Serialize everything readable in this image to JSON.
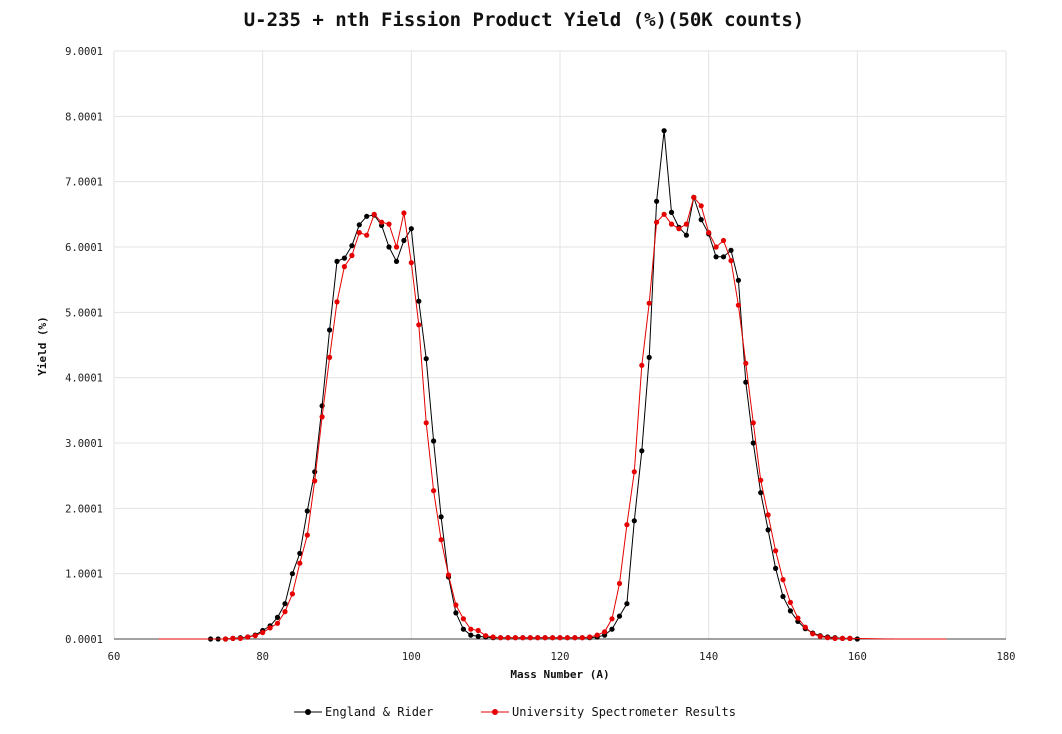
{
  "chart_data": {
    "type": "line",
    "title": "U-235 + nth Fission Product Yield (%)(50K counts)",
    "xlabel": "Mass Number (A)",
    "ylabel": "Yield (%)",
    "xlim": [
      60,
      180
    ],
    "ylim": [
      0.0001,
      9.0001
    ],
    "xticks": [
      60,
      80,
      100,
      120,
      140,
      160,
      180
    ],
    "yticks": [
      0.0001,
      1.0001,
      2.0001,
      3.0001,
      4.0001,
      5.0001,
      6.0001,
      7.0001,
      8.0001,
      9.0001
    ],
    "xtick_labels": [
      "60",
      "80",
      "100",
      "120",
      "140",
      "160",
      "180"
    ],
    "ytick_labels": [
      "0.0001",
      "1.0001",
      "2.0001",
      "3.0001",
      "4.0001",
      "5.0001",
      "6.0001",
      "7.0001",
      "8.0001",
      "9.0001"
    ],
    "grid": true,
    "legend_position": "bottom",
    "series": [
      {
        "name": "England & Rider",
        "color": "#000000",
        "x": [
          73,
          74,
          75,
          76,
          77,
          78,
          79,
          80,
          81,
          82,
          83,
          84,
          85,
          86,
          87,
          88,
          89,
          90,
          91,
          92,
          93,
          94,
          95,
          96,
          97,
          98,
          99,
          100,
          101,
          102,
          103,
          104,
          105,
          106,
          107,
          108,
          109,
          110,
          111,
          112,
          113,
          114,
          115,
          116,
          117,
          118,
          119,
          120,
          121,
          122,
          123,
          124,
          125,
          126,
          127,
          128,
          129,
          130,
          131,
          132,
          133,
          134,
          135,
          136,
          137,
          138,
          139,
          140,
          141,
          142,
          143,
          144,
          145,
          146,
          147,
          148,
          149,
          150,
          151,
          152,
          153,
          154,
          155,
          156,
          157,
          158,
          159,
          160
        ],
        "y": [
          0.0001,
          0.0001,
          0.0001,
          0.01,
          0.02,
          0.03,
          0.06,
          0.13,
          0.2,
          0.33,
          0.54,
          1.0,
          1.31,
          1.96,
          2.56,
          3.57,
          4.73,
          5.78,
          5.83,
          6.02,
          6.34,
          6.47,
          6.49,
          6.33,
          6.0,
          5.78,
          6.1,
          6.28,
          5.17,
          4.29,
          3.03,
          1.87,
          0.95,
          0.4,
          0.15,
          0.06,
          0.04,
          0.03,
          0.02,
          0.02,
          0.02,
          0.02,
          0.02,
          0.02,
          0.02,
          0.02,
          0.02,
          0.02,
          0.02,
          0.02,
          0.02,
          0.02,
          0.03,
          0.06,
          0.15,
          0.35,
          0.54,
          1.81,
          2.88,
          4.31,
          6.7,
          7.78,
          6.53,
          6.3,
          6.18,
          6.76,
          6.42,
          6.2,
          5.85,
          5.85,
          5.95,
          5.49,
          3.93,
          3.0,
          2.24,
          1.67,
          1.08,
          0.65,
          0.43,
          0.27,
          0.16,
          0.09,
          0.05,
          0.03,
          0.02,
          0.01,
          0.01,
          0.0001
        ]
      },
      {
        "name": "University Spectrometer Results",
        "color": "#e60000",
        "x": [
          66,
          70,
          75,
          76,
          77,
          78,
          79,
          80,
          81,
          82,
          83,
          84,
          85,
          86,
          87,
          88,
          89,
          90,
          91,
          92,
          93,
          94,
          95,
          96,
          97,
          98,
          99,
          100,
          101,
          102,
          103,
          104,
          105,
          106,
          107,
          108,
          109,
          110,
          111,
          112,
          113,
          114,
          115,
          116,
          117,
          118,
          119,
          120,
          121,
          122,
          123,
          124,
          125,
          126,
          127,
          128,
          129,
          130,
          131,
          132,
          133,
          134,
          135,
          136,
          137,
          138,
          139,
          140,
          141,
          142,
          143,
          144,
          145,
          146,
          147,
          148,
          149,
          150,
          151,
          152,
          153,
          154,
          155,
          156,
          157,
          158,
          159,
          165,
          172
        ],
        "y": [
          0.0001,
          0.0001,
          0.0001,
          0.01,
          0.01,
          0.03,
          0.05,
          0.1,
          0.17,
          0.24,
          0.42,
          0.69,
          1.16,
          1.59,
          2.42,
          3.4,
          4.31,
          5.16,
          5.7,
          5.87,
          6.22,
          6.18,
          6.5,
          6.38,
          6.35,
          6.0,
          6.52,
          5.76,
          4.81,
          3.31,
          2.27,
          1.52,
          0.98,
          0.52,
          0.31,
          0.15,
          0.13,
          0.05,
          0.03,
          0.02,
          0.02,
          0.02,
          0.02,
          0.02,
          0.02,
          0.02,
          0.02,
          0.02,
          0.02,
          0.02,
          0.02,
          0.03,
          0.06,
          0.11,
          0.31,
          0.85,
          1.75,
          2.56,
          4.19,
          5.14,
          6.38,
          6.5,
          6.35,
          6.28,
          6.35,
          6.76,
          6.63,
          6.22,
          6.0,
          6.1,
          5.79,
          5.11,
          4.22,
          3.31,
          2.43,
          1.9,
          1.35,
          0.91,
          0.56,
          0.32,
          0.18,
          0.08,
          0.04,
          0.02,
          0.01,
          0.01,
          0.01,
          0.0001,
          0.0001
        ]
      }
    ]
  }
}
